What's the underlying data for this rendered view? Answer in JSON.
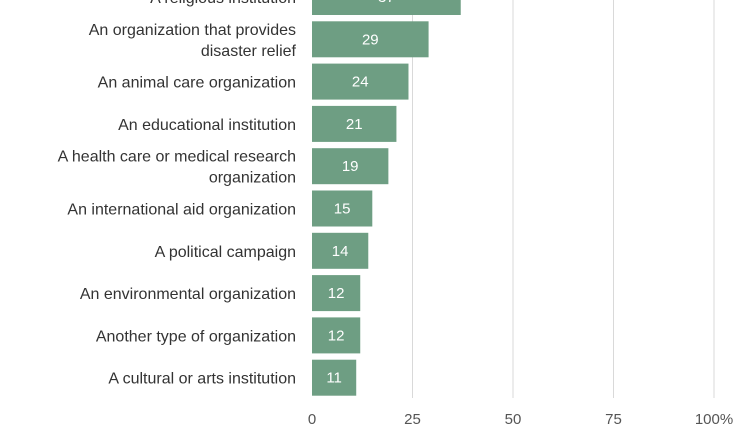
{
  "chart_data": {
    "type": "bar",
    "orientation": "horizontal",
    "categories": [
      [
        "A religious institution"
      ],
      [
        "An organization that provides",
        "disaster relief"
      ],
      [
        "An animal care organization"
      ],
      [
        "An educational institution"
      ],
      [
        "A health care or medical research",
        "organization"
      ],
      [
        "An international aid organization"
      ],
      [
        "A political campaign"
      ],
      [
        "An environmental organization"
      ],
      [
        "Another type of organization"
      ],
      [
        "A cultural or arts institution"
      ]
    ],
    "values": [
      37,
      29,
      24,
      21,
      19,
      15,
      14,
      12,
      12,
      11
    ],
    "xlim": [
      0,
      100
    ],
    "ticks": [
      0,
      25,
      50,
      75,
      100
    ],
    "tick_labels": [
      "0",
      "25",
      "50",
      "75",
      "100%"
    ],
    "grid": true,
    "colors": {
      "bar": "#6e9e83",
      "grid": "#d9d9d9",
      "value_text": "#ffffff"
    }
  }
}
